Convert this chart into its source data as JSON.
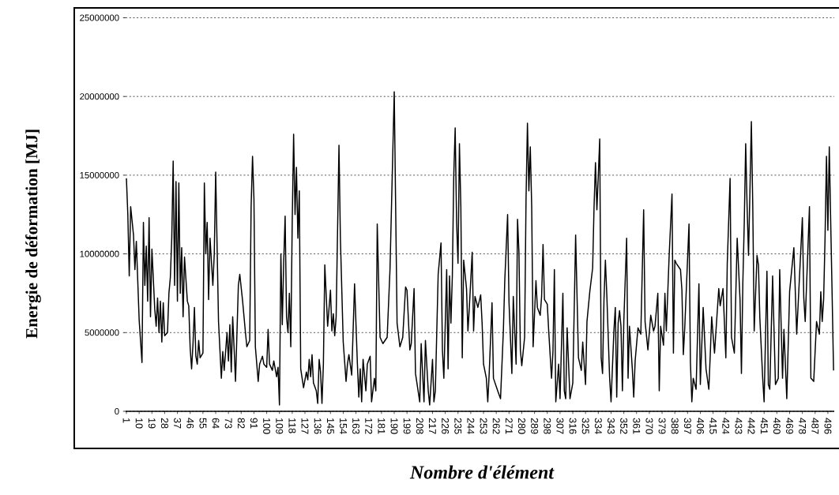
{
  "chart_data": {
    "type": "line",
    "xlabel": "Nombre d'élément",
    "ylabel": "Energie de déformation [MJ]",
    "xlim": [
      0.5,
      500.5
    ],
    "xticks": [
      1,
      10,
      19,
      28,
      37,
      46,
      55,
      64,
      73,
      82,
      91,
      100,
      109,
      118,
      127,
      136,
      145,
      154,
      163,
      172,
      181,
      190,
      199,
      208,
      217,
      226,
      235,
      244,
      253,
      262,
      271,
      280,
      289,
      298,
      307,
      316,
      325,
      334,
      343,
      352,
      361,
      370,
      379,
      388,
      397,
      406,
      415,
      424,
      433,
      442,
      451,
      460,
      469,
      478,
      487,
      496
    ],
    "ylim": [
      0,
      25000000
    ],
    "yticks": [
      0,
      5000000,
      10000000,
      15000000,
      20000000,
      25000000
    ],
    "grid": "y",
    "color": "#000000",
    "x": [
      1,
      2,
      3,
      4,
      6,
      7,
      8,
      10,
      12,
      13,
      14,
      15,
      16,
      17,
      18,
      19,
      21,
      22,
      23,
      24,
      25,
      26,
      27,
      28,
      30,
      31,
      32,
      33,
      34,
      35,
      36,
      37,
      38,
      39,
      40,
      41,
      42,
      44,
      45,
      46,
      47,
      48,
      49,
      50,
      51,
      52,
      53,
      55,
      56,
      57,
      58,
      59,
      60,
      62,
      63,
      64,
      66,
      68,
      69,
      70,
      72,
      73,
      74,
      75,
      76,
      77,
      78,
      80,
      81,
      83,
      85,
      86,
      88,
      89,
      90,
      91,
      92,
      94,
      95,
      97,
      98,
      100,
      101,
      102,
      104,
      105,
      107,
      108,
      109,
      110,
      111,
      112,
      113,
      114,
      115,
      116,
      117,
      118,
      119,
      120,
      121,
      122,
      123,
      124,
      126,
      128,
      129,
      130,
      131,
      132,
      133,
      135,
      136,
      137,
      138,
      139,
      140,
      141,
      143,
      145,
      146,
      147,
      148,
      149,
      151,
      152,
      154,
      156,
      157,
      158,
      160,
      162,
      164,
      165,
      166,
      167,
      168,
      170,
      171,
      173,
      174,
      176,
      177,
      178,
      180,
      182,
      185,
      187,
      190,
      192,
      194,
      196,
      198,
      199,
      201,
      202,
      204,
      205,
      208,
      209,
      211,
      212,
      214,
      215,
      217,
      218,
      219,
      221,
      223,
      224,
      225,
      227,
      228,
      229,
      230,
      231,
      232,
      233,
      234,
      235,
      236,
      237,
      238,
      239,
      241,
      242,
      243,
      245,
      246,
      247,
      249,
      251,
      252,
      253,
      255,
      256,
      257,
      259,
      260,
      263,
      265,
      267,
      268,
      270,
      271,
      273,
      274,
      276,
      277,
      278,
      279,
      280,
      282,
      283,
      284,
      285,
      286,
      287,
      288,
      290,
      291,
      293,
      294,
      295,
      296,
      298,
      299,
      301,
      302,
      303,
      304,
      306,
      307,
      309,
      310,
      311,
      312,
      314,
      316,
      318,
      320,
      322,
      323,
      325,
      326,
      328,
      330,
      331,
      332,
      333,
      334,
      335,
      336,
      337,
      338,
      339,
      340,
      342,
      343,
      345,
      346,
      347,
      348,
      349,
      350,
      351,
      352,
      354,
      355,
      356,
      358,
      359,
      360,
      362,
      364,
      366,
      367,
      369,
      371,
      373,
      374,
      376,
      377,
      378,
      380,
      381,
      382,
      384,
      386,
      387,
      388,
      389,
      392,
      393,
      394,
      395,
      398,
      399,
      400,
      401,
      403,
      405,
      406,
      408,
      410,
      412,
      413,
      414,
      416,
      419,
      420,
      422,
      424,
      425,
      427,
      428,
      430,
      432,
      434,
      435,
      436,
      437,
      438,
      439,
      440,
      441,
      442,
      443,
      444,
      446,
      447,
      448,
      450,
      451,
      453,
      454,
      455,
      457,
      459,
      461,
      462,
      464,
      465,
      467,
      469,
      472,
      474,
      476,
      478,
      479,
      480,
      483,
      484,
      486,
      488,
      490,
      491,
      492,
      493,
      494,
      495,
      496,
      497,
      498,
      499,
      500
    ],
    "values": [
      14800000,
      12500000,
      8600000,
      13000000,
      11200000,
      9000000,
      10800000,
      5800000,
      3100000,
      12000000,
      8000000,
      10500000,
      7000000,
      12300000,
      6000000,
      10300000,
      6500000,
      5400000,
      7200000,
      5000000,
      7000000,
      4400000,
      6900000,
      4800000,
      5000000,
      7500000,
      8500000,
      11000000,
      15900000,
      8000000,
      14600000,
      7000000,
      14500000,
      7500000,
      10400000,
      6000000,
      9800000,
      7000000,
      6700000,
      4000000,
      2700000,
      4300000,
      6600000,
      3500000,
      3000000,
      4500000,
      3400000,
      3700000,
      14500000,
      10000000,
      12000000,
      7100000,
      11000000,
      8000000,
      10000000,
      15200000,
      5700000,
      2100000,
      3800000,
      2600000,
      5000000,
      3200000,
      5500000,
      2500000,
      6000000,
      4000000,
      1900000,
      8000000,
      8700000,
      7000000,
      5000000,
      4100000,
      4500000,
      13000000,
      16200000,
      13500000,
      4100000,
      1900000,
      3000000,
      3500000,
      3000000,
      2800000,
      5200000,
      3000000,
      2600000,
      3200000,
      2200000,
      2800000,
      400000,
      10000000,
      5500000,
      9500000,
      12400000,
      6000000,
      5000000,
      7500000,
      4100000,
      12000000,
      17600000,
      12500000,
      15500000,
      11000000,
      14000000,
      2700000,
      1500000,
      2500000,
      2000000,
      3300000,
      2200000,
      3600000,
      1800000,
      1300000,
      500000,
      3300000,
      2500000,
      500000,
      3000000,
      9300000,
      5400000,
      7700000,
      5100000,
      6200000,
      4800000,
      6000000,
      16900000,
      11000000,
      4400000,
      1900000,
      3000000,
      3600000,
      2300000,
      8100000,
      3000000,
      900000,
      2700000,
      600000,
      3300000,
      1300000,
      3000000,
      3500000,
      600000,
      2100000,
      1300000,
      11900000,
      4700000,
      4300000,
      4700000,
      9000000,
      20300000,
      5600000,
      4100000,
      4700000,
      7900000,
      7700000,
      3900000,
      4300000,
      7800000,
      2400000,
      600000,
      4300000,
      600000,
      4500000,
      1300000,
      400000,
      3300000,
      600000,
      1300000,
      8700000,
      10700000,
      3900000,
      2100000,
      9000000,
      2700000,
      8600000,
      5600000,
      8600000,
      15000000,
      18000000,
      12000000,
      9400000,
      17000000,
      13000000,
      3400000,
      9600000,
      7800000,
      5100000,
      6600000,
      10100000,
      5100000,
      7300000,
      6600000,
      7400000,
      5600000,
      3000000,
      2100000,
      600000,
      2400000,
      6900000,
      2100000,
      1300000,
      800000,
      5100000,
      8300000,
      12500000,
      6900000,
      2400000,
      7300000,
      3000000,
      12200000,
      10100000,
      3900000,
      2900000,
      4700000,
      13500000,
      18300000,
      14000000,
      16800000,
      13000000,
      4100000,
      8300000,
      6600000,
      6100000,
      7300000,
      10600000,
      7100000,
      6800000,
      5100000,
      2100000,
      3800000,
      9000000,
      600000,
      3000000,
      800000,
      7500000,
      1300000,
      800000,
      5300000,
      800000,
      1800000,
      11200000,
      3400000,
      2600000,
      4400000,
      1700000,
      5700000,
      7600000,
      9100000,
      13000000,
      15800000,
      12800000,
      15000000,
      17300000,
      3400000,
      2400000,
      7100000,
      9600000,
      7400000,
      2100000,
      600000,
      5100000,
      6600000,
      900000,
      5600000,
      6400000,
      5400000,
      1300000,
      5700000,
      11000000,
      2100000,
      5400000,
      2700000,
      900000,
      3200000,
      5300000,
      4900000,
      12800000,
      5700000,
      3900000,
      6100000,
      5100000,
      5400000,
      7500000,
      1300000,
      5400000,
      4200000,
      7500000,
      5100000,
      9900000,
      13800000,
      3700000,
      9600000,
      9400000,
      9000000,
      7700000,
      3600000,
      5300000,
      11900000,
      3100000,
      600000,
      2100000,
      1400000,
      8100000,
      1700000,
      6600000,
      2700000,
      1400000,
      3600000,
      6000000,
      3700000,
      7800000,
      6700000,
      7800000,
      3400000,
      9400000,
      14800000,
      4700000,
      3700000,
      11000000,
      7100000,
      2400000,
      8200000,
      12000000,
      17000000,
      13000000,
      9900000,
      14000000,
      18400000,
      13000000,
      5100000,
      9900000,
      9300000,
      5900000,
      2100000,
      600000,
      8900000,
      1700000,
      1400000,
      8600000,
      1700000,
      2100000,
      9000000,
      2100000,
      5200000,
      800000,
      7600000,
      10400000,
      4900000,
      8600000,
      12300000,
      7200000,
      5700000,
      13000000,
      2100000,
      1900000,
      5700000,
      4900000,
      7600000,
      5700000,
      7100000,
      11000000,
      16200000,
      11500000,
      16800000,
      12000000,
      7400000,
      2600000
    ]
  }
}
